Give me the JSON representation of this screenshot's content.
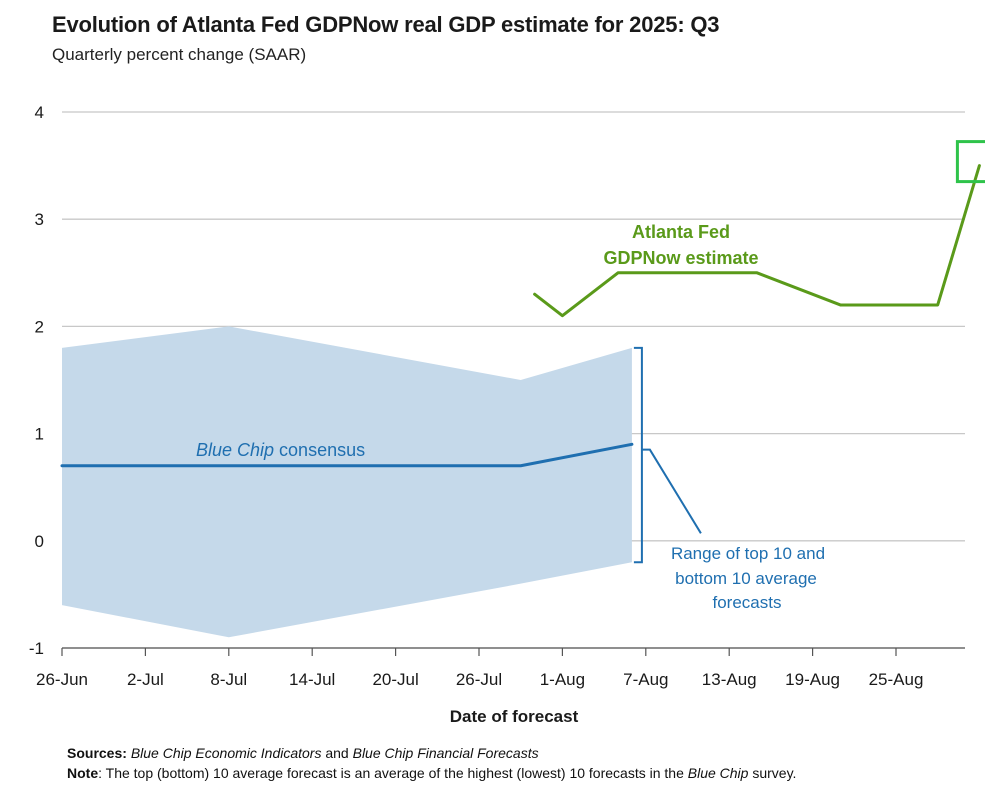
{
  "chart_data": {
    "type": "line",
    "title": "Evolution of Atlanta Fed GDPNow real GDP estimate for 2025: Q3",
    "subtitle": "Quarterly percent change (SAAR)",
    "xlabel": "Date of forecast",
    "ylabel": "",
    "ylim": [
      -1,
      4
    ],
    "yticks": [
      "4",
      "3",
      "2",
      "1",
      "0",
      "-1"
    ],
    "xtick_labels": [
      "26-Jun",
      "2-Jul",
      "8-Jul",
      "14-Jul",
      "20-Jul",
      "26-Jul",
      "1-Aug",
      "7-Aug",
      "13-Aug",
      "19-Aug",
      "25-Aug"
    ],
    "grid": true,
    "series": [
      {
        "name": "Atlanta Fed GDPNow estimate",
        "color": "#5a9a1a",
        "x": [
          "2025-07-30",
          "2025-08-01",
          "2025-08-05",
          "2025-08-15",
          "2025-08-21",
          "2025-08-28",
          "2025-08-31"
        ],
        "y": [
          2.3,
          2.1,
          2.5,
          2.5,
          2.2,
          2.2,
          3.5
        ]
      },
      {
        "name": "Blue Chip consensus",
        "color": "#1f6fb0",
        "x": [
          "2025-06-26",
          "2025-07-29",
          "2025-08-06"
        ],
        "y": [
          0.7,
          0.7,
          0.9
        ]
      }
    ],
    "band": {
      "name": "Range of top 10 and bottom 10 average forecasts",
      "color": "#c5d9ea",
      "x": [
        "2025-06-26",
        "2025-07-08",
        "2025-07-29",
        "2025-08-06"
      ],
      "upper": [
        1.8,
        2.0,
        1.5,
        1.8
      ],
      "lower": [
        -0.6,
        -0.9,
        -0.4,
        -0.2
      ]
    },
    "annotations": {
      "green_line1": "Atlanta Fed",
      "green_line2": "GDPNow estimate",
      "blue_italic": "Blue Chip",
      "blue_rest": " consensus",
      "range_line1": "Range of top 10 and",
      "range_line2": "bottom 10 average",
      "range_line3": "forecasts"
    }
  },
  "footer": {
    "sources_label": "Sources:",
    "sources_pub1": "Blue Chip Economic Indicators",
    "sources_and": " and ",
    "sources_pub2": "Blue Chip Financial Forecasts",
    "note_label": "Note",
    "note_text": ": The top (bottom) 10 average forecast is an average of the highest (lowest) 10 forecasts in the ",
    "note_italic": "Blue Chip",
    "note_end": " survey."
  }
}
